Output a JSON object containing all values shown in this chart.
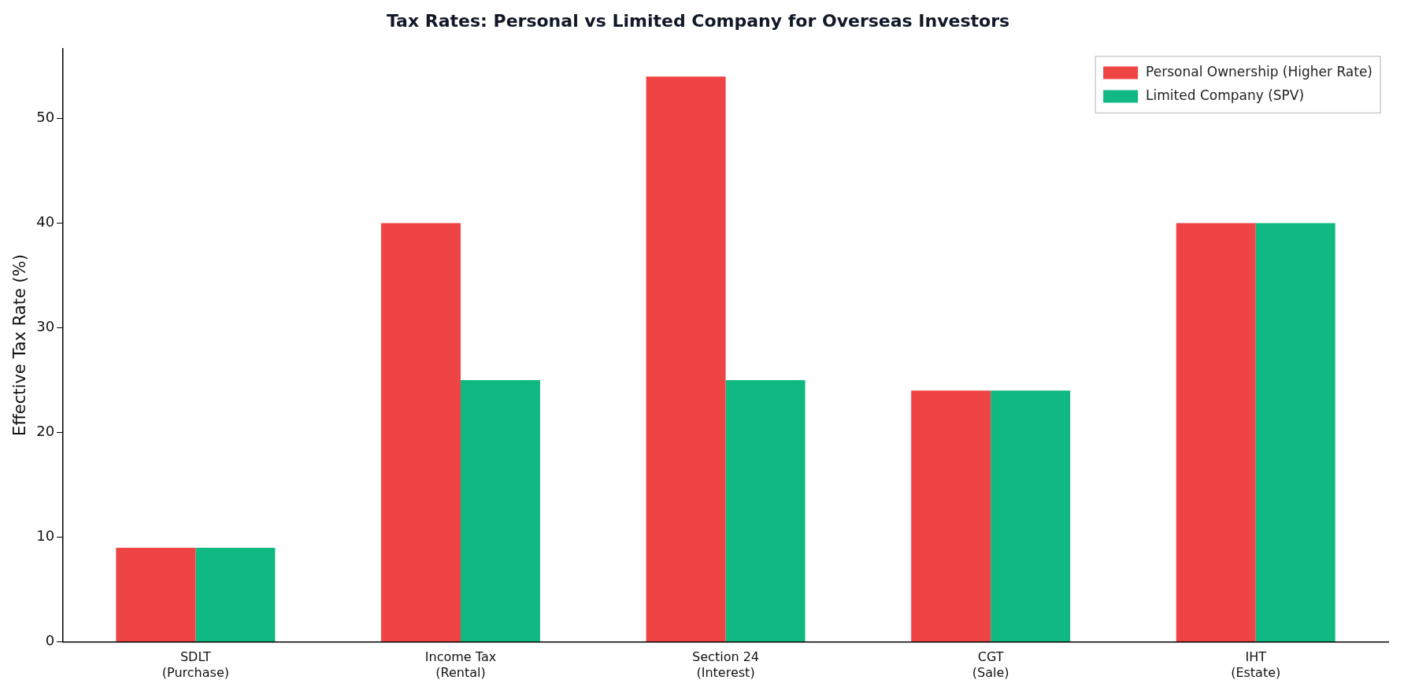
{
  "chart_data": {
    "type": "bar",
    "title": "Tax Rates: Personal vs Limited Company for Overseas Investors",
    "ylabel": "Effective Tax Rate (%)",
    "categories": [
      "SDLT\n(Purchase)",
      "Income Tax\n(Rental)",
      "Section 24\n(Interest)",
      "CGT\n(Sale)",
      "IHT\n(Estate)"
    ],
    "series": [
      {
        "name": "Personal Ownership (Higher Rate)",
        "color": "#ef4444",
        "values": [
          9,
          40,
          54,
          24,
          40
        ]
      },
      {
        "name": "Limited Company (SPV)",
        "color": "#10b981",
        "values": [
          9,
          25,
          25,
          24,
          40
        ]
      }
    ],
    "ylim": [
      0,
      56.7
    ],
    "yticks": [
      0,
      10,
      20,
      30,
      40,
      50
    ],
    "grid": false,
    "legend": "top right"
  }
}
